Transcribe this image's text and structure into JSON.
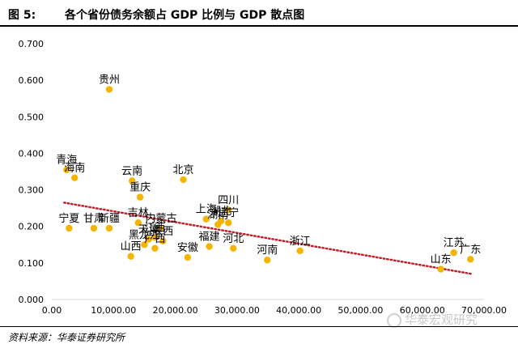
{
  "header": {
    "fig_label": "图 5:",
    "title": "各个省份债务余额占 GDP 比例与 GDP 散点图"
  },
  "source": "资料来源：华泰证券研究所",
  "watermark": "华泰宏观研究",
  "colors": {
    "point": "#F5B400",
    "trend": "#C0202A",
    "axis": "#d9d9d9"
  },
  "chart_data": {
    "type": "scatter",
    "title": "",
    "xlabel": "",
    "ylabel": "",
    "xlim": [
      0,
      70000
    ],
    "ylim": [
      0,
      0.7
    ],
    "grid": false,
    "xticks": [
      0,
      10000,
      20000,
      30000,
      40000,
      50000,
      60000,
      70000
    ],
    "xtick_labels": [
      "0.00",
      "10,000.00",
      "20,000.00",
      "30,000.00",
      "40,000.00",
      "50,000.00",
      "60,000.00",
      "70,000.00"
    ],
    "yticks": [
      0,
      0.1,
      0.2,
      0.3,
      0.4,
      0.5,
      0.6,
      0.7
    ],
    "ytick_labels": [
      "0.000",
      "0.100",
      "0.200",
      "0.300",
      "0.400",
      "0.500",
      "0.600",
      "0.700"
    ],
    "points": [
      {
        "label": "贵州",
        "x": 9300,
        "y": 0.575
      },
      {
        "label": "青海",
        "x": 2400,
        "y": 0.355
      },
      {
        "label": "海南",
        "x": 3700,
        "y": 0.333
      },
      {
        "label": "云南",
        "x": 13000,
        "y": 0.325
      },
      {
        "label": "北京",
        "x": 21300,
        "y": 0.328
      },
      {
        "label": "重庆",
        "x": 14300,
        "y": 0.28
      },
      {
        "label": "上海",
        "x": 25000,
        "y": 0.22
      },
      {
        "label": "四川",
        "x": 28600,
        "y": 0.245
      },
      {
        "label": "宁夏",
        "x": 2800,
        "y": 0.195
      },
      {
        "label": "甘肃",
        "x": 6800,
        "y": 0.195
      },
      {
        "label": "新疆",
        "x": 9300,
        "y": 0.195
      },
      {
        "label": "吉林",
        "x": 14000,
        "y": 0.21
      },
      {
        "label": "内蒙古",
        "x": 17700,
        "y": 0.195
      },
      {
        "label": "江西",
        "x": 16700,
        "y": 0.17
      },
      {
        "label": "天津",
        "x": 15700,
        "y": 0.165
      },
      {
        "label": "陕西",
        "x": 18000,
        "y": 0.16
      },
      {
        "label": "黑龙江",
        "x": 15000,
        "y": 0.15
      },
      {
        "label": "广西",
        "x": 16700,
        "y": 0.14
      },
      {
        "label": "安徽",
        "x": 22000,
        "y": 0.115
      },
      {
        "label": "山西",
        "x": 12800,
        "y": 0.118
      },
      {
        "label": "福建",
        "x": 25500,
        "y": 0.145
      },
      {
        "label": "湖南",
        "x": 26900,
        "y": 0.205
      },
      {
        "label": "湖北",
        "x": 27400,
        "y": 0.215
      },
      {
        "label": "辽宁",
        "x": 28600,
        "y": 0.21
      },
      {
        "label": "河北",
        "x": 29400,
        "y": 0.14
      },
      {
        "label": "河南",
        "x": 34900,
        "y": 0.108
      },
      {
        "label": "浙江",
        "x": 40200,
        "y": 0.133
      },
      {
        "label": "山东",
        "x": 63000,
        "y": 0.083
      },
      {
        "label": "江苏",
        "x": 65100,
        "y": 0.128
      },
      {
        "label": "广东",
        "x": 67800,
        "y": 0.11
      }
    ],
    "trendline": {
      "style": "dotted",
      "x": [
        2000,
        68000
      ],
      "y": [
        0.265,
        0.07
      ]
    }
  }
}
